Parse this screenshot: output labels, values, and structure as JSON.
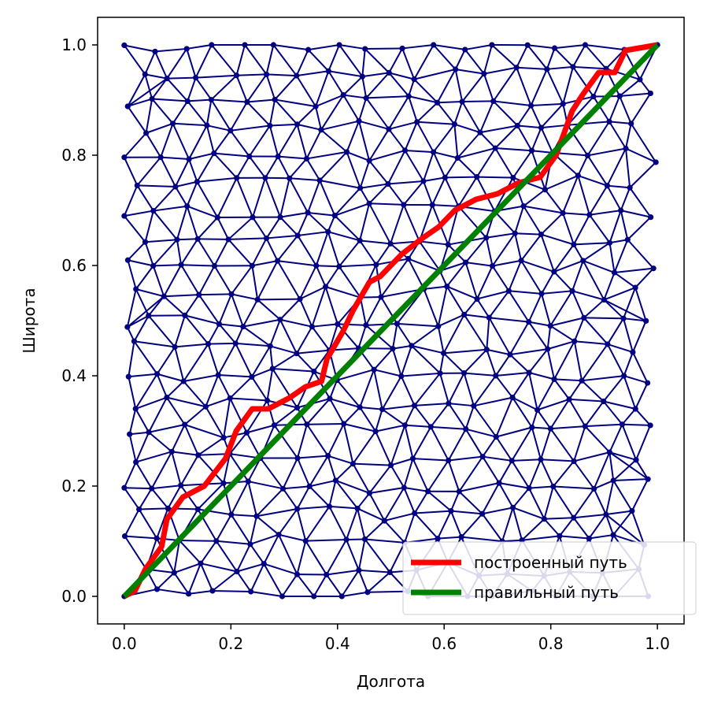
{
  "chart_data": {
    "type": "line",
    "xlabel": "Долгота",
    "ylabel": "Широта",
    "xlim": [
      -0.05,
      1.05
    ],
    "ylim": [
      -0.05,
      1.05
    ],
    "x_ticks": [
      0.0,
      0.2,
      0.4,
      0.6,
      0.8,
      1.0
    ],
    "y_ticks": [
      0.0,
      0.2,
      0.4,
      0.6,
      0.8,
      1.0
    ],
    "x_tick_labels": [
      "0.0",
      "0.2",
      "0.4",
      "0.6",
      "0.8",
      "1.0"
    ],
    "y_tick_labels": [
      "0.0",
      "0.2",
      "0.4",
      "0.6",
      "0.8",
      "1.0"
    ],
    "grid": false,
    "legend_position": "bottom-right",
    "network": {
      "color": "#000080",
      "x_range": [
        0,
        1
      ],
      "y_range": [
        0,
        1
      ],
      "spacing": 0.058
    },
    "series": [
      {
        "name": "построенный путь",
        "color": "#ff0000",
        "points": [
          [
            0.0,
            0.0
          ],
          [
            0.02,
            0.01
          ],
          [
            0.04,
            0.05
          ],
          [
            0.07,
            0.09
          ],
          [
            0.08,
            0.14
          ],
          [
            0.11,
            0.18
          ],
          [
            0.15,
            0.2
          ],
          [
            0.19,
            0.25
          ],
          [
            0.21,
            0.3
          ],
          [
            0.24,
            0.34
          ],
          [
            0.27,
            0.34
          ],
          [
            0.31,
            0.36
          ],
          [
            0.34,
            0.38
          ],
          [
            0.37,
            0.39
          ],
          [
            0.38,
            0.43
          ],
          [
            0.41,
            0.48
          ],
          [
            0.43,
            0.52
          ],
          [
            0.46,
            0.57
          ],
          [
            0.48,
            0.58
          ],
          [
            0.52,
            0.62
          ],
          [
            0.56,
            0.65
          ],
          [
            0.59,
            0.67
          ],
          [
            0.62,
            0.7
          ],
          [
            0.66,
            0.72
          ],
          [
            0.7,
            0.73
          ],
          [
            0.74,
            0.75
          ],
          [
            0.78,
            0.76
          ],
          [
            0.81,
            0.8
          ],
          [
            0.84,
            0.88
          ],
          [
            0.86,
            0.91
          ],
          [
            0.89,
            0.95
          ],
          [
            0.92,
            0.95
          ],
          [
            0.94,
            0.99
          ],
          [
            0.97,
            0.995
          ],
          [
            1.0,
            1.0
          ]
        ]
      },
      {
        "name": "правильный путь",
        "color": "#008000",
        "points": [
          [
            0.0,
            0.0
          ],
          [
            1.0,
            1.0
          ]
        ]
      }
    ]
  }
}
